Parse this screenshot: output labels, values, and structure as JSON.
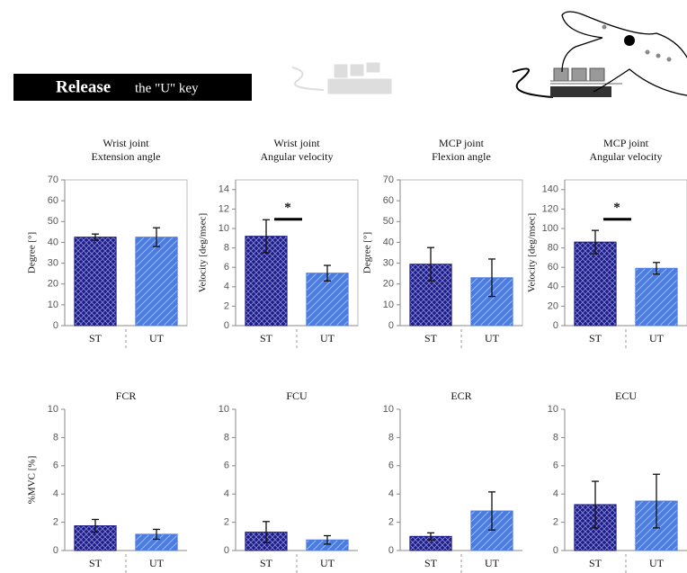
{
  "header": {
    "bold": "Release",
    "text": "the \"U\" key"
  },
  "chart_data": [
    {
      "type": "bar",
      "title": "Wrist joint",
      "subtitle": "Extension angle",
      "ylabel": "Degree [°]",
      "categories": [
        "ST",
        "UT"
      ],
      "values": [
        42.5,
        42.5
      ],
      "errors": [
        1.5,
        4.5
      ],
      "colors": [
        "#1c1c86",
        "#4c7ce0"
      ],
      "ylim": [
        0,
        70
      ],
      "yticks": [
        0,
        10,
        20,
        30,
        40,
        50,
        60,
        70
      ],
      "box": true
    },
    {
      "type": "bar",
      "title": "Wrist joint",
      "subtitle": "Angular velocity",
      "ylabel": "Velocity [deg/msec]",
      "categories": [
        "ST",
        "UT"
      ],
      "values": [
        9.2,
        5.4
      ],
      "errors": [
        1.7,
        0.8
      ],
      "colors": [
        "#1c1c86",
        "#4c7ce0"
      ],
      "ylim": [
        0,
        15
      ],
      "yticks": [
        0,
        2,
        4,
        6,
        8,
        10,
        12,
        14
      ],
      "annotation": "*",
      "box": true
    },
    {
      "type": "bar",
      "title": "MCP joint",
      "subtitle": "Flexion angle",
      "ylabel": "Degree [°]",
      "categories": [
        "ST",
        "UT"
      ],
      "values": [
        29.5,
        23
      ],
      "errors": [
        8,
        9
      ],
      "colors": [
        "#1c1c86",
        "#4c7ce0"
      ],
      "ylim": [
        0,
        70
      ],
      "yticks": [
        0,
        10,
        20,
        30,
        40,
        50,
        60,
        70
      ],
      "box": true
    },
    {
      "type": "bar",
      "title": "MCP joint",
      "subtitle": "Angular velocity",
      "ylabel": "Velocity [deg/msec]",
      "categories": [
        "ST",
        "UT"
      ],
      "values": [
        86,
        59
      ],
      "errors": [
        12,
        6
      ],
      "colors": [
        "#1c1c86",
        "#4c7ce0"
      ],
      "ylim": [
        0,
        150
      ],
      "yticks": [
        0,
        20,
        40,
        60,
        80,
        100,
        120,
        140
      ],
      "annotation": "*",
      "box": true
    },
    {
      "type": "bar",
      "title": "FCR",
      "ylabel": "%MVC [%]",
      "categories": [
        "ST",
        "UT"
      ],
      "values": [
        1.75,
        1.15
      ],
      "errors": [
        0.45,
        0.35
      ],
      "colors": [
        "#1c1c86",
        "#4c7ce0"
      ],
      "ylim": [
        0,
        10
      ],
      "yticks": [
        0,
        2,
        4,
        6,
        8,
        10
      ],
      "box": false
    },
    {
      "type": "bar",
      "title": "FCU",
      "categories": [
        "ST",
        "UT"
      ],
      "values": [
        1.3,
        0.75
      ],
      "errors": [
        0.75,
        0.3
      ],
      "colors": [
        "#1c1c86",
        "#4c7ce0"
      ],
      "ylim": [
        0,
        10
      ],
      "yticks": [
        0,
        2,
        4,
        6,
        8,
        10
      ],
      "box": false
    },
    {
      "type": "bar",
      "title": "ECR",
      "categories": [
        "ST",
        "UT"
      ],
      "values": [
        1.0,
        2.8
      ],
      "errors": [
        0.25,
        1.35
      ],
      "colors": [
        "#1c1c86",
        "#4c7ce0"
      ],
      "ylim": [
        0,
        10
      ],
      "yticks": [
        0,
        2,
        4,
        6,
        8,
        10
      ],
      "box": false
    },
    {
      "type": "bar",
      "title": "ECU",
      "categories": [
        "ST",
        "UT"
      ],
      "values": [
        3.25,
        3.5
      ],
      "errors": [
        1.65,
        1.9
      ],
      "colors": [
        "#1c1c86",
        "#4c7ce0"
      ],
      "ylim": [
        0,
        10
      ],
      "yticks": [
        0,
        2,
        4,
        6,
        8,
        10
      ],
      "box": false
    }
  ]
}
